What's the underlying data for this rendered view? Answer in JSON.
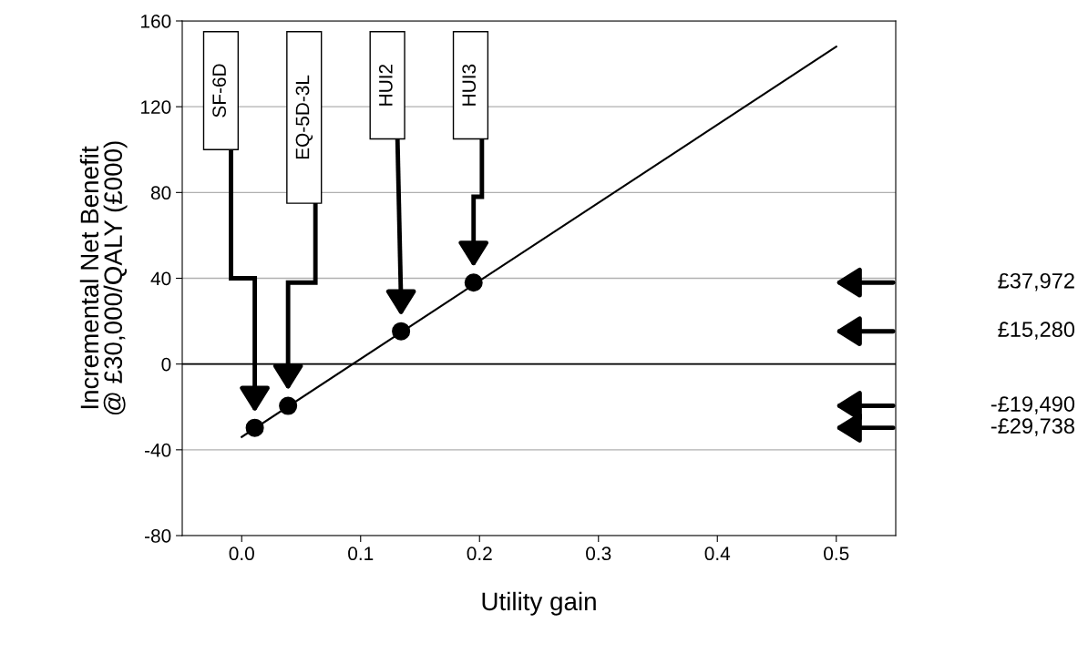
{
  "chart_data": {
    "type": "scatter",
    "xlabel": "Utility gain",
    "ylabel": "Incremental Net Benefit\n@ £30,000/QALY (£000)",
    "xlim": [
      -0.05,
      0.55
    ],
    "ylim": [
      -80,
      160
    ],
    "xticks": [
      {
        "value": 0,
        "label": "0.0"
      },
      0.1,
      0.2,
      0.3,
      0.4,
      0.5
    ],
    "yticks": [
      -80,
      -40,
      0,
      40,
      80,
      120,
      160
    ],
    "grid": "y",
    "marker": "circle",
    "legend": false,
    "ref_lines": [
      {
        "axis": "y",
        "value": 0,
        "color": "#000000"
      }
    ],
    "series": [
      {
        "type": "line",
        "marker": "none",
        "color": "#000000",
        "x": [
          0,
          0.5
        ],
        "values": [
          -34,
          148
        ]
      },
      {
        "color": "#000000",
        "x": [
          0.011,
          0.039,
          0.134,
          0.195
        ],
        "values": [
          -29.738,
          -19.49,
          15.28,
          37.972
        ]
      }
    ],
    "annotations": [
      "SF-6D",
      "EQ-5D-3L",
      "HUI2",
      "HUI3",
      "£37,972",
      "£15,280",
      "-£19,490",
      "-£29,738"
    ]
  }
}
